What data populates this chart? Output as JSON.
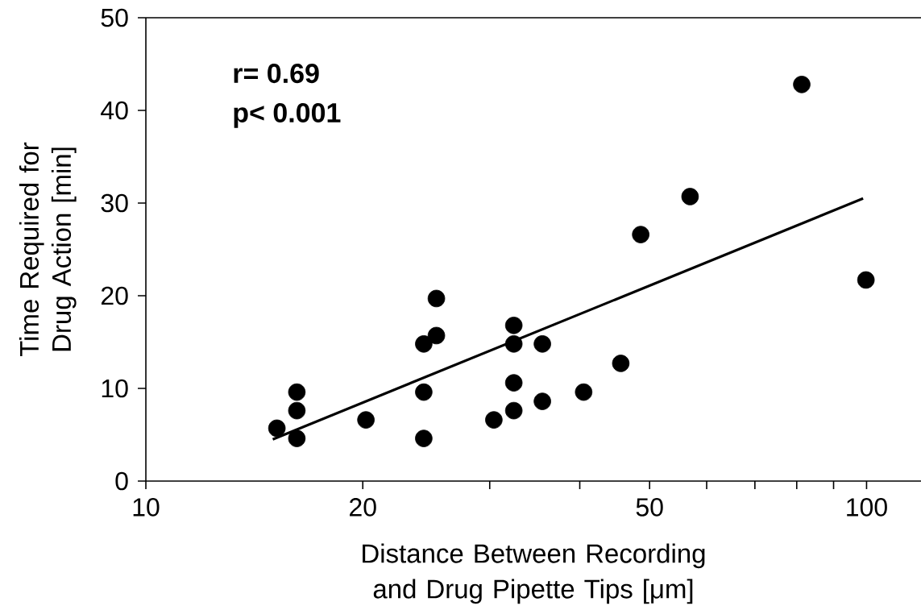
{
  "chart_data": {
    "type": "scatter",
    "xlabel": "Distance Between Recording and Drug Pipette Tips [μm]",
    "ylabel": "Time Required for Drug Action [min]",
    "annotations": [
      "r= 0.69",
      "p< 0.001"
    ],
    "log": "x",
    "grid": false,
    "xlim": [
      10,
      119
    ],
    "ylim": [
      0,
      50
    ],
    "xticks": [
      10,
      20,
      {
        "value": 30,
        "label": null
      },
      {
        "value": 40,
        "label": null
      },
      50,
      {
        "value": 60,
        "label": null
      },
      {
        "value": 70,
        "label": null
      },
      {
        "value": 80,
        "label": null
      },
      {
        "value": 90,
        "label": null
      },
      100
    ],
    "yticks": [
      0,
      10,
      20,
      30,
      40,
      50
    ],
    "series": [
      {
        "color": "#000000",
        "marker": "circle",
        "x": [
          15.2,
          16.2,
          16.2,
          16.2,
          20.2,
          24.3,
          24.3,
          24.3,
          25.3,
          25.3,
          30.4,
          32.4,
          32.4,
          32.4,
          32.4,
          35.5,
          35.5,
          40.5,
          45.6,
          48.6,
          56.9,
          81.3,
          99.8
        ],
        "values": [
          5.7,
          9.6,
          7.6,
          4.6,
          6.6,
          14.8,
          9.6,
          4.6,
          19.7,
          15.7,
          6.6,
          16.8,
          14.8,
          10.6,
          7.6,
          14.8,
          8.6,
          9.6,
          12.7,
          26.6,
          30.7,
          42.8,
          21.7
        ]
      },
      {
        "type": "line",
        "color": "#000000",
        "marker": "none",
        "line_style": "solid",
        "x": [
          15.0,
          98.9
        ],
        "values": [
          4.5,
          30.5
        ]
      }
    ]
  }
}
